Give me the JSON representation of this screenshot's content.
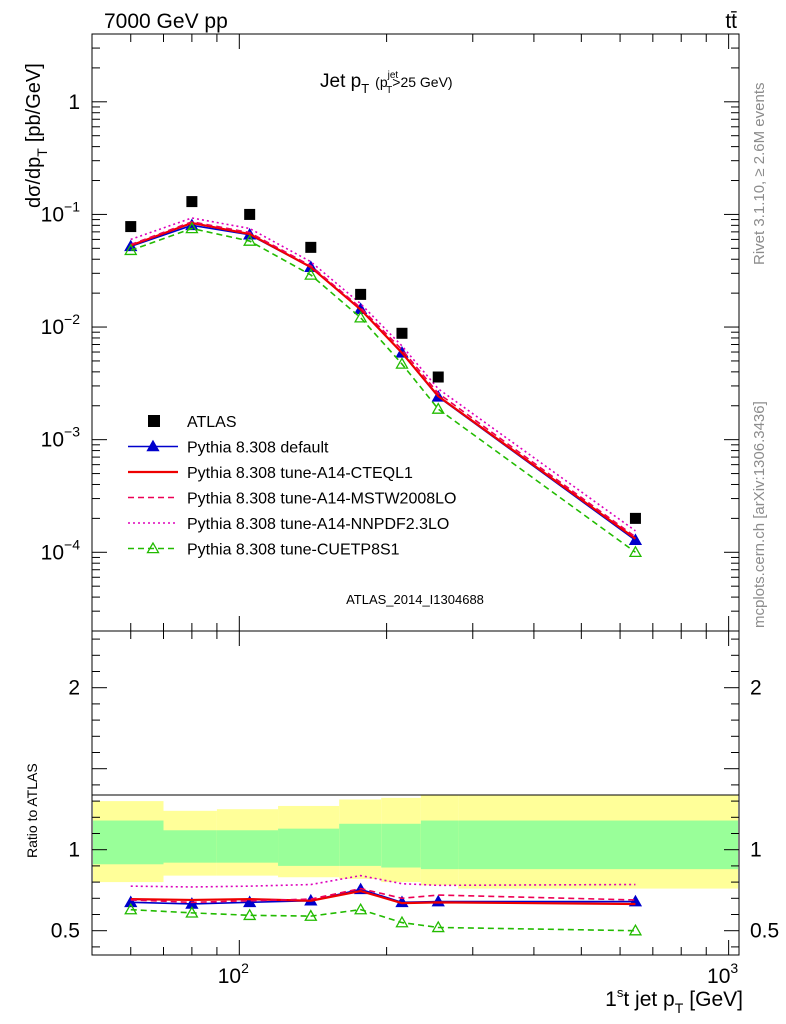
{
  "header": {
    "left": "7000 GeV pp",
    "right": "tt̄"
  },
  "side_labels": {
    "rivet": "Rivet 3.1.10, ≥ 2.6M events",
    "mcplots": "mcplots.cern.ch [arXiv:1306.3436]"
  },
  "chart_data": [
    {
      "type": "scatter",
      "title_main": "Jet p",
      "title_sub": "T",
      "title_cut": "(p",
      "title_cut_sup": "jet",
      "title_cut_sub": "T",
      "title_cut_rest": ">25 GeV)",
      "ylabel": "dσ/dp",
      "ylabel_sub": "T",
      "ylabel_unit": "[pb/GeV]",
      "analysis_tag": "ATLAS_2014_I1304688",
      "xscale": "log",
      "yscale": "log",
      "xlim": [
        50,
        1050
      ],
      "ylim": [
        2e-05,
        4
      ],
      "legend_position": "bottom-left",
      "y_ticks": [
        {
          "value": 1,
          "base": "1",
          "exp": ""
        },
        {
          "value": 0.1,
          "base": "10",
          "exp": "−1"
        },
        {
          "value": 0.01,
          "base": "10",
          "exp": "−2"
        },
        {
          "value": 0.001,
          "base": "10",
          "exp": "−3"
        },
        {
          "value": 0.0001,
          "base": "10",
          "exp": "−4"
        }
      ],
      "x": [
        60,
        80,
        105,
        140,
        177,
        215,
        255,
        645
      ],
      "series": [
        {
          "name": "ATLAS",
          "color": "#000000",
          "style": "data",
          "values": [
            0.078,
            0.13,
            0.1,
            0.051,
            0.0195,
            0.0088,
            0.0036,
            0.0002
          ]
        },
        {
          "name": "Pythia 8.308 default",
          "color": "#0000cc",
          "style": "solid-triangle",
          "values": [
            0.052,
            0.08,
            0.066,
            0.034,
            0.0144,
            0.0059,
            0.0024,
            0.000128
          ]
        },
        {
          "name": "Pythia 8.308 tune-A14-CTEQL1",
          "color": "#ee0000",
          "style": "solid",
          "values": [
            0.053,
            0.084,
            0.067,
            0.034,
            0.0143,
            0.0059,
            0.00243,
            0.000132
          ]
        },
        {
          "name": "Pythia 8.308 tune-A14-MSTW2008LO",
          "color": "#ee0055",
          "style": "dashed",
          "values": [
            0.054,
            0.086,
            0.069,
            0.035,
            0.0148,
            0.0063,
            0.00258,
            0.000137
          ]
        },
        {
          "name": "Pythia 8.308 tune-A14-NNPDF2.3LO",
          "color": "#dd00bb",
          "style": "dotted",
          "values": [
            0.06,
            0.093,
            0.075,
            0.038,
            0.0161,
            0.0068,
            0.00283,
            0.000155
          ]
        },
        {
          "name": "Pythia 8.308 tune-CUETP8S1",
          "color": "#22bb00",
          "style": "dashed-open-triangle",
          "values": [
            0.048,
            0.075,
            0.058,
            0.029,
            0.0121,
            0.0047,
            0.00187,
            0.0001
          ]
        }
      ]
    },
    {
      "type": "scatter",
      "ylabel": "Ratio to ATLAS",
      "xlabel": "1",
      "xlabel_sup": "s",
      "xlabel_rest": "t jet p",
      "xlabel_sub": "T",
      "xlabel_unit": "[GeV]",
      "xscale": "log",
      "xlim": [
        50,
        1050
      ],
      "ylim": [
        0.35,
        2.35
      ],
      "y_ticks": [
        "0.5",
        "1",
        "2"
      ],
      "x_ticks": [
        {
          "value": 100,
          "base": "10",
          "exp": "2"
        },
        {
          "value": 1000,
          "base": "10",
          "exp": "3"
        }
      ],
      "bins": [
        [
          50,
          70
        ],
        [
          70,
          90
        ],
        [
          90,
          120
        ],
        [
          120,
          160
        ],
        [
          160,
          195
        ],
        [
          195,
          235
        ],
        [
          235,
          280
        ],
        [
          280,
          1050
        ]
      ],
      "band_yellow": [
        [
          0.8,
          1.3
        ],
        [
          0.84,
          1.24
        ],
        [
          0.84,
          1.25
        ],
        [
          0.83,
          1.27
        ],
        [
          0.82,
          1.31
        ],
        [
          0.8,
          1.32
        ],
        [
          0.78,
          1.34
        ],
        [
          0.76,
          1.34
        ]
      ],
      "band_green": [
        [
          0.91,
          1.18
        ],
        [
          0.92,
          1.12
        ],
        [
          0.92,
          1.12
        ],
        [
          0.9,
          1.13
        ],
        [
          0.9,
          1.16
        ],
        [
          0.89,
          1.16
        ],
        [
          0.88,
          1.18
        ],
        [
          0.88,
          1.18
        ]
      ],
      "x": [
        60,
        80,
        105,
        140,
        177,
        215,
        255,
        645
      ],
      "series": [
        {
          "name": "Pythia 8.308 default",
          "color": "#0000cc",
          "style": "solid-triangle",
          "values": [
            0.675,
            0.665,
            0.675,
            0.685,
            0.755,
            0.675,
            0.68,
            0.68
          ]
        },
        {
          "name": "Pythia 8.308 tune-A14-CTEQL1",
          "color": "#ee0000",
          "style": "solid",
          "values": [
            0.695,
            0.69,
            0.695,
            0.685,
            0.745,
            0.67,
            0.675,
            0.665
          ]
        },
        {
          "name": "Pythia 8.308 tune-A14-MSTW2008LO",
          "color": "#ee0055",
          "style": "dashed",
          "values": [
            0.69,
            0.675,
            0.685,
            0.695,
            0.76,
            0.7,
            0.72,
            0.69
          ]
        },
        {
          "name": "Pythia 8.308 tune-A14-NNPDF2.3LO",
          "color": "#dd00bb",
          "style": "dotted",
          "values": [
            0.775,
            0.77,
            0.775,
            0.785,
            0.84,
            0.79,
            0.78,
            0.785
          ]
        },
        {
          "name": "Pythia 8.308 tune-CUETP8S1",
          "color": "#22bb00",
          "style": "dashed-open-triangle",
          "values": [
            0.63,
            0.61,
            0.595,
            0.59,
            0.63,
            0.55,
            0.52,
            0.5
          ]
        }
      ]
    }
  ]
}
